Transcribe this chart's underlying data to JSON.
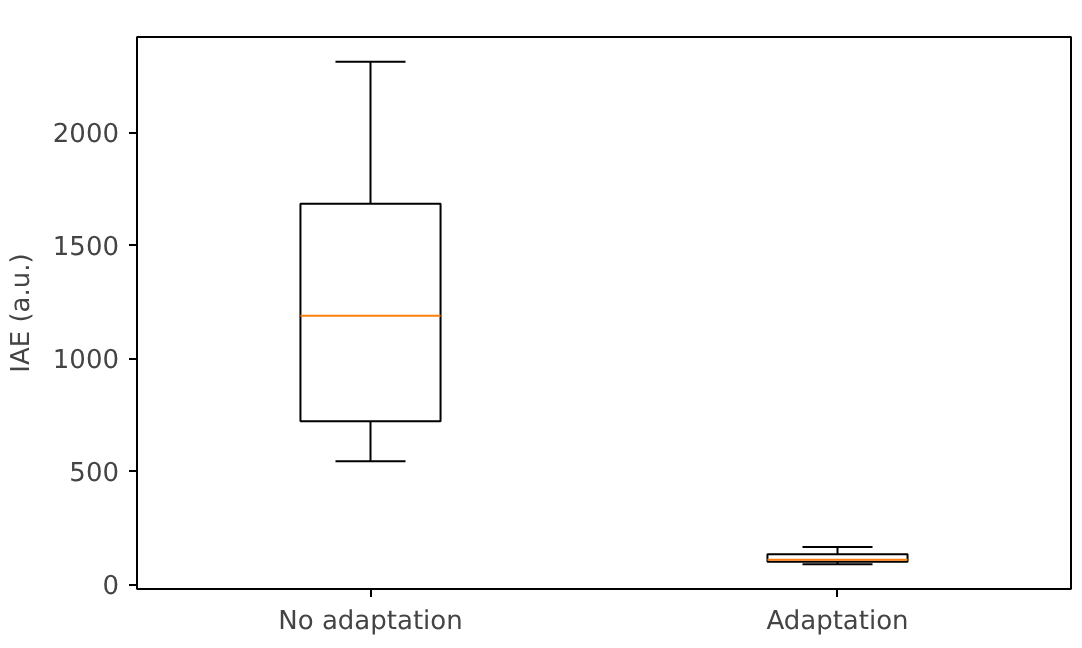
{
  "chart_data": {
    "type": "box",
    "ylabel": "IAE (a.u.)",
    "categories": [
      "No adaptation",
      "Adaptation"
    ],
    "boxes": [
      {
        "low": 544,
        "q1": 721,
        "median": 1188,
        "q3": 1684,
        "high": 2313
      },
      {
        "low": 89,
        "q1": 100,
        "median": 109,
        "q3": 133,
        "high": 165
      }
    ],
    "ylim": [
      -21,
      2422
    ],
    "yticks": [
      0,
      500,
      1000,
      1500,
      2000
    ],
    "grid": false
  }
}
